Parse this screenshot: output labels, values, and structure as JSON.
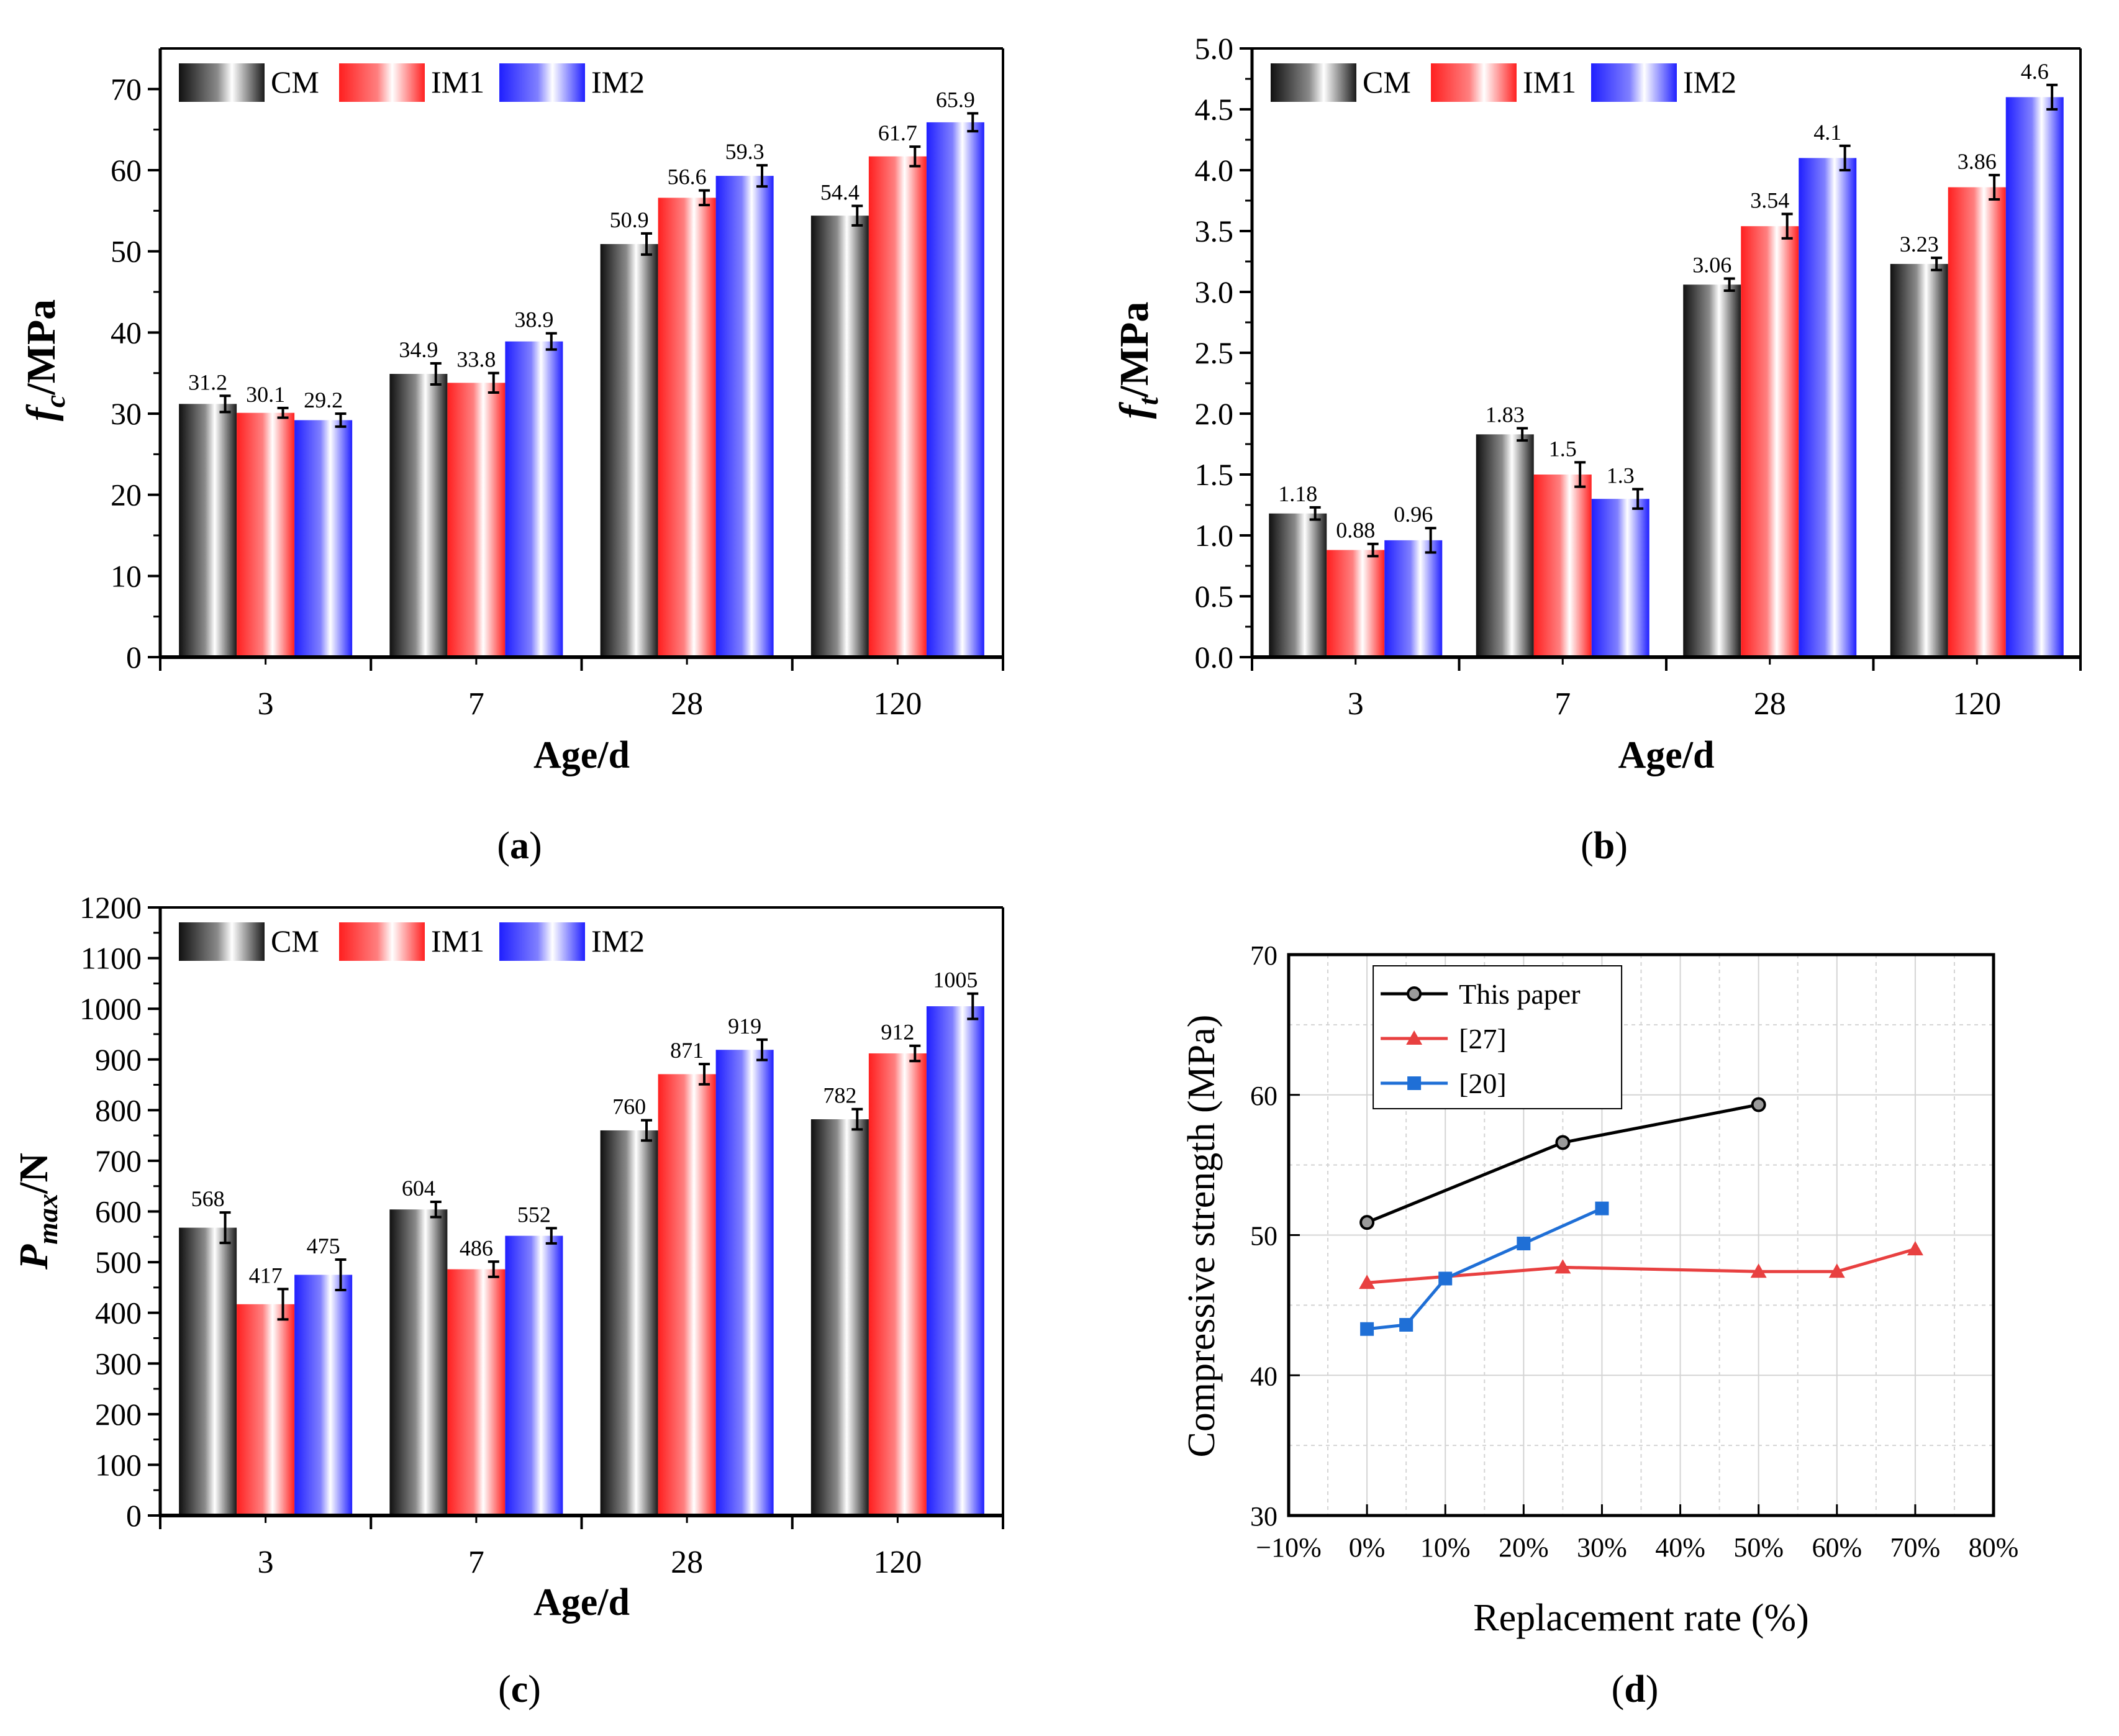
{
  "colors": {
    "CM": "#2a2a2a",
    "IM1": "#ff1f1f",
    "IM2": "#1f1fff",
    "this_paper": "#000000",
    "ref27": "#e84040",
    "ref20": "#1f6fd6",
    "grid": "#d4d4d4"
  },
  "chart_data": [
    {
      "type": "bar",
      "panel_label": "a",
      "ylabel": {
        "main": "f",
        "sub": "c",
        "unit": "/MPa"
      },
      "xlabel": "Age/d",
      "categories": [
        "3",
        "7",
        "28",
        "120"
      ],
      "ylim": [
        0,
        75
      ],
      "yticks": [
        0,
        10,
        20,
        30,
        40,
        50,
        60,
        70
      ],
      "legend": "top-left",
      "series": [
        {
          "name": "CM",
          "values": [
            31.2,
            34.9,
            50.9,
            54.4
          ],
          "errors": [
            1.0,
            1.3,
            1.3,
            1.2
          ],
          "labels": [
            "31.2",
            "34.9",
            "50.9",
            "54.4"
          ]
        },
        {
          "name": "IM1",
          "values": [
            30.1,
            33.8,
            56.6,
            61.7
          ],
          "errors": [
            0.6,
            1.2,
            0.9,
            1.2
          ],
          "labels": [
            "30.1",
            "33.8",
            "56.6",
            "61.7"
          ]
        },
        {
          "name": "IM2",
          "values": [
            29.2,
            38.9,
            59.3,
            65.9
          ],
          "errors": [
            0.8,
            1.0,
            1.3,
            1.1
          ],
          "labels": [
            "29.2",
            "38.9",
            "59.3",
            "65.9"
          ]
        }
      ]
    },
    {
      "type": "bar",
      "panel_label": "b",
      "ylabel": {
        "main": "f",
        "sub": "t",
        "unit": "/MPa"
      },
      "xlabel": "Age/d",
      "categories": [
        "3",
        "7",
        "28",
        "120"
      ],
      "ylim": [
        0,
        5
      ],
      "yticks": [
        0,
        0.5,
        1,
        1.5,
        2,
        2.5,
        3,
        3.5,
        4,
        4.5,
        5
      ],
      "tick_decimals": 1,
      "legend": "top-left",
      "series": [
        {
          "name": "CM",
          "values": [
            1.18,
            1.83,
            3.06,
            3.23
          ],
          "errors": [
            0.05,
            0.05,
            0.05,
            0.05
          ],
          "labels": [
            "1.18",
            "1.83",
            "3.06",
            "3.23"
          ]
        },
        {
          "name": "IM1",
          "values": [
            0.88,
            1.5,
            3.54,
            3.86
          ],
          "errors": [
            0.05,
            0.1,
            0.1,
            0.1
          ],
          "labels": [
            "0.88",
            "1.5",
            "3.54",
            "3.86"
          ]
        },
        {
          "name": "IM2",
          "values": [
            0.96,
            1.3,
            4.1,
            4.6
          ],
          "errors": [
            0.1,
            0.08,
            0.1,
            0.1
          ],
          "labels": [
            "0.96",
            "1.3",
            "4.1",
            "4.6"
          ]
        }
      ]
    },
    {
      "type": "bar",
      "panel_label": "c",
      "ylabel": {
        "main": "P",
        "sub": "max",
        "unit": "/N"
      },
      "xlabel": "Age/d",
      "categories": [
        "3",
        "7",
        "28",
        "120"
      ],
      "ylim": [
        0,
        1200
      ],
      "yticks": [
        0,
        100,
        200,
        300,
        400,
        500,
        600,
        700,
        800,
        900,
        1000,
        1100,
        1200
      ],
      "legend": "top-left",
      "series": [
        {
          "name": "CM",
          "values": [
            568,
            604,
            760,
            782
          ],
          "errors": [
            30,
            15,
            20,
            20
          ],
          "labels": [
            "568",
            "604",
            "760",
            "782"
          ]
        },
        {
          "name": "IM1",
          "values": [
            417,
            486,
            871,
            912
          ],
          "errors": [
            30,
            15,
            20,
            15
          ],
          "labels": [
            "417",
            "486",
            "871",
            "912"
          ]
        },
        {
          "name": "IM2",
          "values": [
            475,
            552,
            919,
            1005
          ],
          "errors": [
            30,
            15,
            20,
            25
          ],
          "labels": [
            "475",
            "552",
            "919",
            "1005"
          ]
        }
      ]
    },
    {
      "type": "line",
      "panel_label": "d",
      "ylabel": "Compressive strength (MPa)",
      "xlabel": "Replacement rate (%)",
      "xlim": [
        -10,
        80
      ],
      "xticks": [
        -10,
        0,
        10,
        20,
        30,
        40,
        50,
        60,
        70,
        80
      ],
      "xticklabels": [
        "−10%",
        "0%",
        "10%",
        "20%",
        "30%",
        "40%",
        "50%",
        "60%",
        "70%",
        "80%"
      ],
      "ylim": [
        30,
        70
      ],
      "yticks": [
        30,
        40,
        50,
        60,
        70
      ],
      "grid": true,
      "legend": "top-left",
      "series": [
        {
          "name": "This paper",
          "marker": "circle",
          "x": [
            0,
            25,
            50
          ],
          "y": [
            50.9,
            56.6,
            59.3
          ]
        },
        {
          "name": "[27]",
          "marker": "triangle",
          "x": [
            0,
            25,
            50,
            60,
            70
          ],
          "y": [
            46.6,
            47.7,
            47.4,
            47.4,
            49.0
          ]
        },
        {
          "name": "[20]",
          "marker": "square",
          "x": [
            0,
            5,
            10,
            20,
            30
          ],
          "y": [
            43.3,
            43.6,
            46.9,
            49.4,
            51.9
          ]
        }
      ]
    }
  ]
}
